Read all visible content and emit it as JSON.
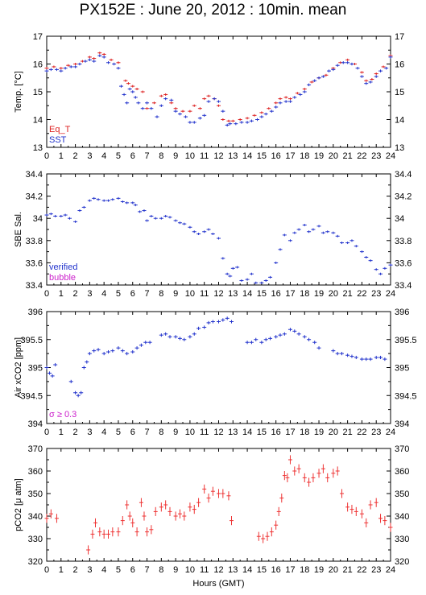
{
  "title": "PX152E : June 20, 2012 : 10min. mean",
  "colors": {
    "red": "#dd2222",
    "blue": "#2233cc",
    "magenta": "#cc22cc",
    "errblue": "#3344ee",
    "errred": "#ee3333"
  },
  "chart_data": [
    {
      "type": "scatter",
      "ylabel": "Temp. [°C]",
      "xlabel": "",
      "xlim": [
        0,
        24
      ],
      "ylim": [
        13,
        17
      ],
      "yticks": [
        13,
        14,
        15,
        16,
        17
      ],
      "xticks": [
        0,
        1,
        2,
        3,
        4,
        5,
        6,
        7,
        8,
        9,
        10,
        11,
        12,
        13,
        14,
        15,
        16,
        17,
        18,
        19,
        20,
        21,
        22,
        23,
        24
      ],
      "legend": [
        {
          "name": "Eq_T",
          "color": "#dd2222"
        },
        {
          "name": "SST",
          "color": "#2233cc"
        }
      ],
      "legend_placement": "bottom-left",
      "series": [
        {
          "name": "Eq_T",
          "color": "#dd2222",
          "err": 0.02,
          "x": [
            0,
            0.5,
            1,
            1.5,
            2,
            2.5,
            3,
            3.3,
            3.7,
            4,
            4.5,
            5,
            5.5,
            5.7,
            6,
            6.3,
            6.7,
            7,
            7.5,
            8,
            8.3,
            8.7,
            9,
            9.5,
            10,
            10.3,
            10.7,
            11,
            11.3,
            11.7,
            12,
            12.3,
            12.7,
            13,
            13.5,
            14,
            14.5,
            15,
            15.5,
            16,
            16.3,
            16.7,
            17,
            17.5,
            18,
            18.5,
            19,
            19.5,
            20,
            20.5,
            21,
            21.5,
            22,
            22.3,
            22.7,
            23,
            23.5,
            24
          ],
          "y": [
            15.85,
            15.9,
            15.85,
            15.95,
            16.0,
            16.1,
            16.25,
            16.2,
            16.4,
            16.35,
            16.15,
            16.05,
            15.4,
            15.3,
            15.2,
            15.1,
            15.0,
            14.4,
            14.6,
            14.85,
            14.9,
            14.6,
            14.4,
            14.3,
            14.3,
            14.5,
            14.4,
            14.75,
            14.85,
            14.75,
            14.5,
            14.0,
            13.95,
            13.95,
            14.0,
            14.05,
            14.15,
            14.25,
            14.4,
            14.6,
            14.75,
            14.8,
            14.75,
            14.95,
            15.1,
            15.35,
            15.5,
            15.6,
            15.85,
            16.05,
            16.15,
            16.0,
            15.7,
            15.4,
            15.45,
            15.65,
            15.9,
            16.3
          ]
        },
        {
          "name": "SST",
          "color": "#2233cc",
          "err": 0.05,
          "x": [
            0,
            0.3,
            0.7,
            1,
            1.3,
            1.7,
            2,
            2.3,
            2.7,
            3,
            3.3,
            3.7,
            4,
            4.3,
            4.7,
            5,
            5.2,
            5.4,
            5.6,
            5.8,
            6,
            6.2,
            6.4,
            6.7,
            7,
            7.3,
            7.7,
            8,
            8.3,
            8.7,
            9,
            9.3,
            9.7,
            10,
            10.3,
            10.7,
            11,
            11.3,
            11.7,
            12,
            12.3,
            12.6,
            12.8,
            13.2,
            13.6,
            14,
            14.3,
            14.7,
            15,
            15.3,
            15.7,
            16,
            16.3,
            16.7,
            17,
            17.3,
            17.7,
            18,
            18.3,
            18.7,
            19,
            19.3,
            19.7,
            20,
            20.3,
            20.7,
            21,
            21.3,
            21.7,
            22,
            22.3,
            22.6,
            23,
            23.3,
            23.7,
            24
          ],
          "y": [
            15.75,
            15.8,
            15.8,
            15.75,
            15.85,
            15.9,
            15.9,
            16.0,
            16.1,
            16.15,
            16.1,
            16.3,
            16.25,
            16.05,
            16.0,
            15.85,
            15.2,
            14.9,
            14.6,
            15.1,
            15.0,
            14.8,
            14.6,
            14.4,
            14.6,
            14.4,
            14.1,
            14.5,
            14.75,
            14.7,
            14.3,
            14.2,
            14.1,
            13.9,
            13.9,
            14.05,
            14.15,
            14.65,
            14.75,
            14.65,
            14.3,
            13.8,
            13.85,
            13.85,
            13.9,
            13.9,
            13.95,
            14.0,
            14.1,
            14.2,
            14.3,
            14.45,
            14.6,
            14.65,
            14.65,
            14.8,
            14.9,
            15.0,
            15.25,
            15.4,
            15.5,
            15.55,
            15.75,
            15.8,
            15.95,
            16.05,
            16.05,
            16.0,
            15.85,
            15.55,
            15.3,
            15.35,
            15.55,
            15.75,
            15.85,
            16.25
          ]
        }
      ]
    },
    {
      "type": "scatter",
      "ylabel": "SBE Sal.",
      "xlabel": "",
      "xlim": [
        0,
        24
      ],
      "ylim": [
        33.4,
        34.4
      ],
      "yticks": [
        33.4,
        33.6,
        33.8,
        34,
        34.2,
        34.4
      ],
      "xticks": [
        0,
        1,
        2,
        3,
        4,
        5,
        6,
        7,
        8,
        9,
        10,
        11,
        12,
        13,
        14,
        15,
        16,
        17,
        18,
        19,
        20,
        21,
        22,
        23,
        24
      ],
      "legend": [
        {
          "name": "verified",
          "color": "#2233cc"
        },
        {
          "name": "bubble",
          "color": "#cc22cc"
        }
      ],
      "legend_placement": "bottom-left",
      "series": [
        {
          "name": "verified",
          "color": "#2233cc",
          "err": 0.01,
          "x": [
            0,
            0.3,
            0.6,
            1,
            1.3,
            1.6,
            2,
            2.3,
            2.6,
            3,
            3.3,
            3.6,
            4,
            4.3,
            4.6,
            5,
            5.3,
            5.6,
            6,
            6.2,
            6.5,
            6.8,
            7,
            7.3,
            7.6,
            8,
            8.3,
            8.6,
            9,
            9.3,
            9.6,
            10,
            10.3,
            10.6,
            11,
            11.3,
            11.6,
            12,
            12.3,
            12.6,
            12.8,
            13,
            13.3,
            13.6,
            14,
            14.3,
            14.6,
            15,
            15.3,
            15.6,
            16,
            16.3,
            16.6,
            17,
            17.3,
            17.6,
            18,
            18.3,
            18.6,
            19,
            19.3,
            19.6,
            20,
            20.3,
            20.6,
            21,
            21.3,
            21.6,
            22,
            22.3,
            22.6,
            23,
            23.3,
            23.6,
            24
          ],
          "y": [
            34.03,
            34.04,
            34.02,
            34.02,
            34.03,
            34.0,
            33.97,
            34.07,
            34.1,
            34.16,
            34.18,
            34.17,
            34.16,
            34.16,
            34.17,
            34.18,
            34.15,
            34.14,
            34.14,
            34.12,
            34.06,
            34.07,
            33.98,
            34.02,
            34.0,
            34.0,
            34.02,
            34.01,
            33.98,
            33.96,
            33.95,
            33.92,
            33.88,
            33.86,
            33.88,
            33.9,
            33.86,
            33.82,
            33.64,
            33.5,
            33.48,
            33.55,
            33.56,
            33.44,
            33.45,
            33.5,
            33.42,
            33.42,
            33.44,
            33.47,
            33.6,
            33.72,
            33.85,
            33.8,
            33.87,
            33.9,
            33.94,
            33.88,
            33.9,
            33.93,
            33.87,
            33.88,
            33.87,
            33.84,
            33.78,
            33.78,
            33.8,
            33.75,
            33.7,
            33.65,
            33.62,
            33.54,
            33.5,
            33.55,
            33.58
          ]
        }
      ]
    },
    {
      "type": "scatter",
      "ylabel": "Air xCO2 [ppm]",
      "ylabel_sub": "2",
      "xlabel": "",
      "xlim": [
        0,
        24
      ],
      "ylim": [
        394,
        396
      ],
      "yticks": [
        394,
        394.5,
        395,
        395.5,
        396
      ],
      "xticks": [
        0,
        1,
        2,
        3,
        4,
        5,
        6,
        7,
        8,
        9,
        10,
        11,
        12,
        13,
        14,
        15,
        16,
        17,
        18,
        19,
        20,
        21,
        22,
        23,
        24
      ],
      "annotation": "σ ≥ 0.3",
      "annotation_color": "#cc22cc",
      "series": [
        {
          "name": "",
          "color": "#2233cc",
          "err": 0.03,
          "x": [
            0,
            0.2,
            0.4,
            0.6,
            1.7,
            2,
            2.2,
            2.4,
            2.6,
            2.8,
            3,
            3.3,
            3.6,
            4,
            4.3,
            4.6,
            5,
            5.3,
            5.6,
            6,
            6.3,
            6.6,
            6.9,
            7.2,
            8,
            8.3,
            8.6,
            9,
            9.3,
            9.6,
            10,
            10.3,
            10.6,
            11,
            11.3,
            11.6,
            12,
            12.3,
            12.6,
            12.9,
            14,
            14.3,
            14.6,
            15,
            15.3,
            15.6,
            16,
            16.3,
            16.6,
            17,
            17.3,
            17.6,
            18,
            18.3,
            18.7,
            19,
            20,
            20.3,
            20.6,
            21,
            21.3,
            21.6,
            22,
            22.3,
            22.6,
            23,
            23.3,
            23.6
          ],
          "y": [
            395.0,
            394.9,
            394.85,
            395.05,
            394.75,
            394.55,
            394.5,
            394.55,
            395.0,
            395.1,
            395.25,
            395.3,
            395.32,
            395.25,
            395.28,
            395.3,
            395.35,
            395.3,
            395.25,
            395.28,
            395.35,
            395.4,
            395.45,
            395.45,
            395.58,
            395.6,
            395.55,
            395.55,
            395.52,
            395.5,
            395.55,
            395.6,
            395.7,
            395.72,
            395.8,
            395.82,
            395.82,
            395.85,
            395.88,
            395.82,
            395.45,
            395.45,
            395.5,
            395.45,
            395.5,
            395.52,
            395.55,
            395.58,
            395.6,
            395.68,
            395.65,
            395.6,
            395.55,
            395.5,
            395.45,
            395.35,
            395.3,
            395.25,
            395.25,
            395.22,
            395.2,
            395.18,
            395.15,
            395.15,
            395.15,
            395.18,
            395.18,
            395.15
          ]
        }
      ]
    },
    {
      "type": "scatter",
      "ylabel": "pCO2 [μ atm]",
      "ylabel_sub": "2",
      "xlabel": "Hours (GMT)",
      "xlim": [
        0,
        24
      ],
      "ylim": [
        320,
        370
      ],
      "yticks": [
        320,
        330,
        340,
        350,
        360,
        370
      ],
      "xticks": [
        0,
        1,
        2,
        3,
        4,
        5,
        6,
        7,
        8,
        9,
        10,
        11,
        12,
        13,
        14,
        15,
        16,
        17,
        18,
        19,
        20,
        21,
        22,
        23,
        24
      ],
      "series": [
        {
          "name": "",
          "color": "#ee3333",
          "err": 2,
          "x": [
            0,
            0.3,
            0.7,
            2.9,
            3.2,
            3.4,
            3.7,
            4,
            4.3,
            4.6,
            5,
            5.3,
            5.6,
            5.8,
            6,
            6.3,
            6.6,
            6.8,
            7,
            7.3,
            7.6,
            8,
            8.3,
            8.6,
            9,
            9.3,
            9.6,
            10,
            10.3,
            10.6,
            11,
            11.3,
            11.6,
            12,
            12.3,
            12.7,
            12.9,
            14.8,
            15.1,
            15.4,
            15.7,
            16,
            16.2,
            16.4,
            16.6,
            16.8,
            17,
            17.3,
            17.6,
            18,
            18.3,
            18.6,
            19,
            19.3,
            19.6,
            20,
            20.3,
            20.6,
            21,
            21.3,
            21.6,
            22,
            22.3,
            22.6,
            23,
            23.3,
            23.6,
            24
          ],
          "y": [
            339,
            341,
            339,
            325,
            332,
            337,
            333,
            332,
            332,
            333,
            333,
            338,
            345,
            340,
            337,
            333,
            346,
            340,
            333,
            334,
            342,
            344,
            345,
            342,
            340,
            341,
            340,
            344,
            343,
            346,
            352,
            348,
            351,
            350,
            350,
            349,
            338,
            331,
            330,
            331,
            333,
            336,
            342,
            348,
            358,
            357,
            365,
            360,
            361,
            357,
            355,
            357,
            359,
            361,
            357,
            359,
            360,
            350,
            344,
            343,
            342,
            341,
            337,
            345,
            346,
            339,
            338,
            335
          ]
        }
      ]
    }
  ]
}
